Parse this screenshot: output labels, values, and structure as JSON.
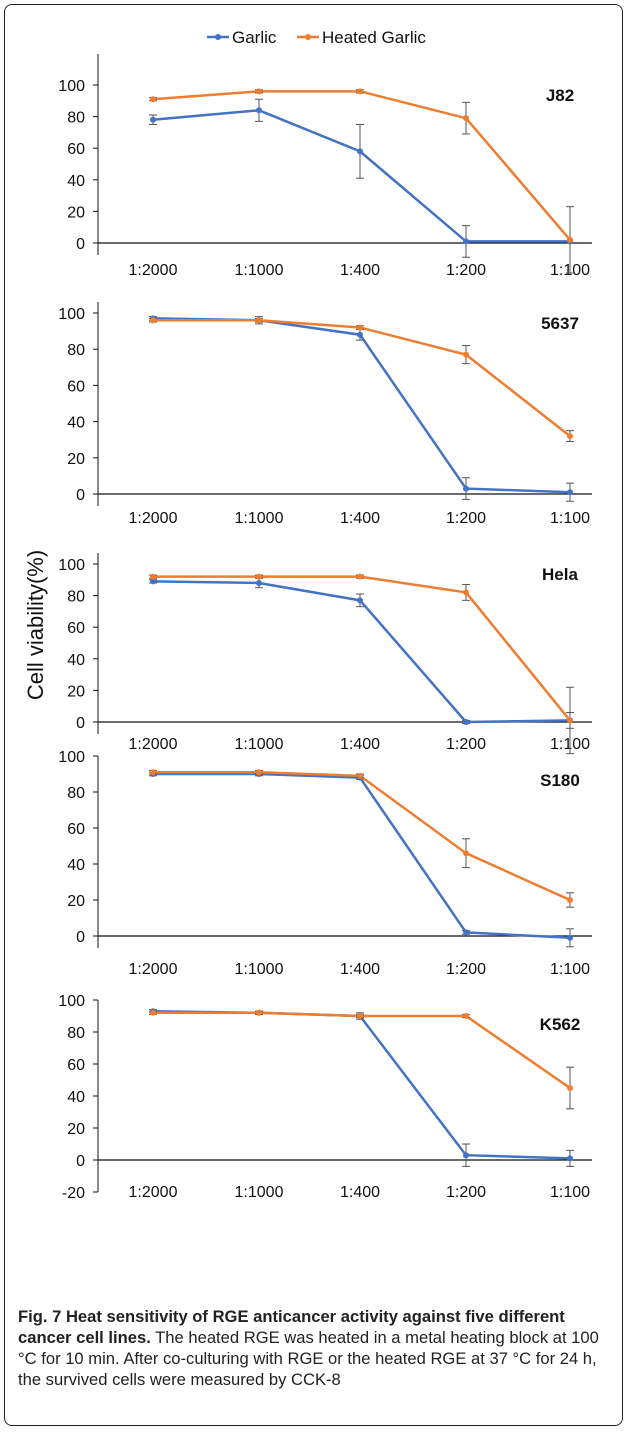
{
  "chart_data": {
    "type": "line",
    "legend": {
      "position": "top",
      "series_names": [
        "Garlic",
        "Heated Garlic"
      ]
    },
    "ylabel": "Cell viability(%)",
    "colors": {
      "garlic": "#4472c4",
      "heated": "#ed7d31"
    },
    "categories": [
      "1:2000",
      "1:1000",
      "1:400",
      "1:200",
      "1:100"
    ],
    "panels": [
      {
        "title": "J82",
        "yticks": [
          0,
          20,
          40,
          60,
          80,
          100
        ],
        "ylim": [
          -5,
          120
        ],
        "series": [
          {
            "name": "Garlic",
            "values": [
              78,
              84,
              58,
              1,
              1
            ],
            "errors": [
              3,
              7,
              17,
              10,
              0
            ]
          },
          {
            "name": "Heated Garlic",
            "values": [
              91,
              96,
              96,
              79,
              2
            ],
            "errors": [
              1,
              1,
              1,
              10,
              21
            ]
          }
        ]
      },
      {
        "title": "5637",
        "yticks": [
          0,
          20,
          40,
          60,
          80,
          100
        ],
        "ylim": [
          0,
          118
        ],
        "series": [
          {
            "name": "Garlic",
            "values": [
              97,
              96,
              88,
              3,
              1
            ],
            "errors": [
              1,
              2,
              3,
              6,
              5
            ]
          },
          {
            "name": "Heated Garlic",
            "values": [
              96,
              96,
              92,
              77,
              32
            ],
            "errors": [
              1,
              1,
              1,
              5,
              3
            ]
          }
        ]
      },
      {
        "title": "Hela",
        "yticks": [
          0,
          20,
          40,
          60,
          80,
          100
        ],
        "ylim": [
          -5,
          117
        ],
        "series": [
          {
            "name": "Garlic",
            "values": [
              89,
              88,
              77,
              0,
              1
            ],
            "errors": [
              1,
              3,
              4,
              1,
              21
            ]
          },
          {
            "name": "Heated Garlic",
            "values": [
              92,
              92,
              92,
              82,
              1
            ],
            "errors": [
              1,
              1,
              1,
              5,
              5
            ]
          }
        ]
      },
      {
        "title": "S180",
        "yticks": [
          0,
          20,
          40,
          60,
          80,
          100
        ],
        "ylim": [
          0,
          100
        ],
        "series": [
          {
            "name": "Garlic",
            "values": [
              90,
              90,
              88,
              2,
              -1
            ],
            "errors": [
              1,
              1,
              1,
              1,
              5
            ]
          },
          {
            "name": "Heated Garlic",
            "values": [
              91,
              91,
              89,
              46,
              20
            ],
            "errors": [
              1,
              1,
              1,
              8,
              4
            ]
          }
        ]
      },
      {
        "title": "K562",
        "yticks": [
          -20,
          0,
          20,
          40,
          60,
          80,
          100
        ],
        "ylim": [
          -20,
          100
        ],
        "series": [
          {
            "name": "Garlic",
            "values": [
              93,
              92,
              90,
              3,
              1
            ],
            "errors": [
              1,
              1,
              2,
              7,
              5
            ]
          },
          {
            "name": "Heated Garlic",
            "values": [
              92,
              92,
              90,
              90,
              45
            ],
            "errors": [
              1,
              1,
              1,
              1,
              13
            ]
          }
        ]
      }
    ]
  },
  "caption": {
    "bold": "Fig. 7 Heat sensitivity of RGE anticancer activity against five different cancer cell lines.",
    "text": " The heated RGE was heated in a metal heating block at 100 °C for 10 min. After co-culturing with RGE or the heated RGE at 37 °C for 24 h, the survived cells were measured by CCK-8"
  }
}
